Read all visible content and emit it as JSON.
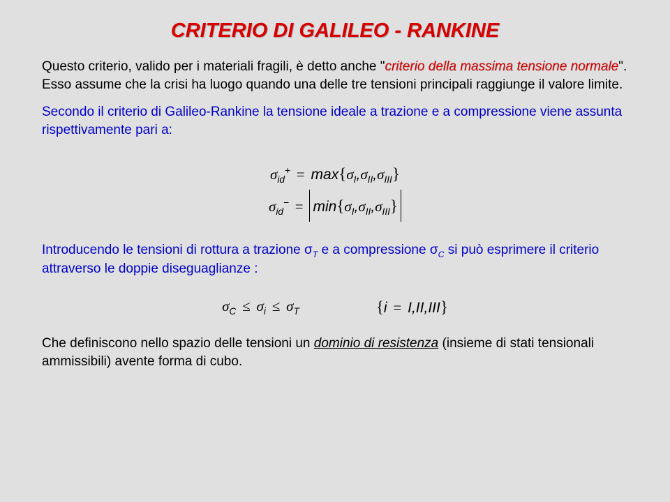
{
  "title": "CRITERIO DI GALILEO - RANKINE",
  "p1_a": "Questo criterio, valido per i materiali fragili, è detto anche \"",
  "p1_kw": "criterio della massima tensione normale",
  "p1_b": "\". Esso  assume che la crisi ha luogo quando una delle tre tensioni principali raggiunge il valore limite.",
  "p2": "Secondo il criterio di Galileo-Rankine la tensione ideale a trazione e a compressione viene assunta rispettivamente pari a:",
  "f1_lhs1": "σ",
  "f1_sub1": "id",
  "f1_sup1": "+",
  "f1_eq": "=",
  "f1_max": "max",
  "f1_sigI": "σ",
  "f1_I": "I",
  "f1_II": "II",
  "f1_III": "III",
  "f2_sup": "−",
  "f2_min": "min",
  "p3_a": "Introducendo le tensioni di rottura a trazione  σ",
  "p3_T": "T",
  "p3_b": " e a compressione σ",
  "p3_C": "C",
  "p3_c": " si può esprimere il criterio attraverso le doppie diseguaglianze :",
  "f3_C": "C",
  "f3_i": "i",
  "f3_T": "T",
  "f3_le": "≤",
  "f3_set_i": "i",
  "f3_set_eq": "=",
  "f3_set_I": "I",
  "f3_set_II": "II",
  "f3_set_III": "III",
  "p4_a": "Che definiscono nello spazio delle tensioni un ",
  "p4_u": "dominio di resistenza",
  "p4_b": " (insieme di stati tensionali ammissibili) avente forma di cubo.",
  "comma": ",",
  "colors": {
    "background": "#e0e0e0",
    "title": "#d80000",
    "black": "#000000",
    "blue": "#0000c8",
    "red": "#d80000"
  },
  "fonts": {
    "family": "Comic Sans MS",
    "title_size_pt": 22,
    "body_size_pt": 15,
    "formula_size_pt": 16
  }
}
